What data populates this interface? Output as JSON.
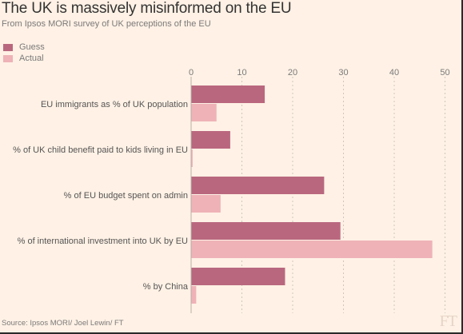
{
  "title": "The UK is massively misinformed on the EU",
  "subtitle": "From Ipsos MORI survey of UK perceptions of the EU",
  "source": "Source: Ipsos MORI/ Joel Lewin/ FT",
  "logo_text": "FT",
  "colors": {
    "background": "#fff1e5",
    "guess": "#b9677f",
    "actual": "#eeb2b7",
    "grid": "#cfc6bd"
  },
  "chart_data": {
    "type": "bar",
    "orientation": "horizontal",
    "title": "The UK is massively misinformed on the EU",
    "subtitle": "From Ipsos MORI survey of UK perceptions of the EU",
    "categories": [
      "EU immigrants as % of UK population",
      "% of UK child benefit paid to kids living in EU",
      "% of EU budget spent on admin",
      "% of international investment into UK by EU",
      "% by China"
    ],
    "series": [
      {
        "name": "Guess",
        "values": [
          14.5,
          7.7,
          26.2,
          29.4,
          18.5
        ]
      },
      {
        "name": "Actual",
        "values": [
          5.0,
          0.3,
          5.8,
          47.5,
          1.0
        ]
      }
    ],
    "xlim": [
      0,
      50
    ],
    "ticks": [
      0,
      10,
      20,
      30,
      40,
      50
    ],
    "xlabel": "",
    "ylabel": "",
    "grid": true,
    "legend_position": "top-left"
  }
}
